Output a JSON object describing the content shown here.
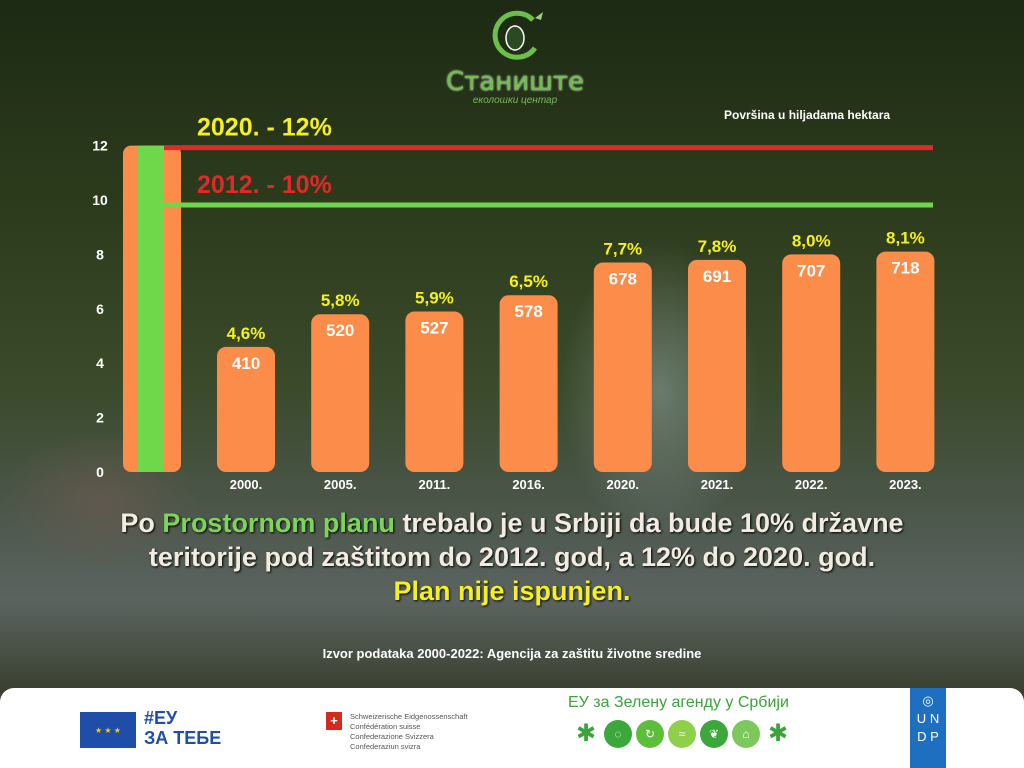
{
  "logo": {
    "name": "Станиште",
    "subtitle": "еколошки центар"
  },
  "unit_note": "Površina u  hiljadama hektara",
  "chart_data": {
    "type": "bar",
    "ylim": [
      0,
      12
    ],
    "yticks": [
      "0",
      "2",
      "4",
      "6",
      "8",
      "10",
      "12"
    ],
    "categories": [
      "2000.",
      "2005.",
      "2011.",
      "2016.",
      "2020.",
      "2021.",
      "2022.",
      "2023."
    ],
    "percent_values": [
      4.6,
      5.8,
      5.9,
      6.5,
      7.7,
      7.8,
      8.0,
      8.1
    ],
    "percent_labels": [
      "4,6%",
      "5,8%",
      "5,9%",
      "6,5%",
      "7,7%",
      "7,8%",
      "8,0%",
      "8,1%"
    ],
    "area_labels": [
      "410",
      "520",
      "527",
      "578",
      "678",
      "691",
      "707",
      "718"
    ],
    "reference_bar": {
      "value": 12
    },
    "targets": [
      {
        "label": "2020. - 12%",
        "value": 12,
        "line_color": "#e02a2a",
        "label_color": "#f5f020"
      },
      {
        "label": "2012. - 10%",
        "value": 10,
        "line_color": "#6fd84a",
        "label_color": "#e02a2a"
      }
    ],
    "bar_color": "#fb8c4a",
    "ref_color": "#6fd84a"
  },
  "message": {
    "p1": "Po ",
    "p2": "Prostornom planu",
    "p3": " trebalo je u  Srbiji  da bude 10% državne",
    "line2": "teritorije pod zaštitom do 2012. god, a 12% do 2020. god.",
    "line3": "Plan nije ispunjen."
  },
  "source": "Izvor podataka  2000-2022: Agencija za zaštitu životne sredine",
  "footer": {
    "eu_tag1": "#ЕУ",
    "eu_tag2": "ЗА ТЕБЕ",
    "swiss": [
      "Schweizerische Eidgenossenschaft",
      "Confédération suisse",
      "Confederazione Svizzera",
      "Confederaziun svizra"
    ],
    "green_agenda": "ЕУ за Зелену агенду у Србији",
    "undp": [
      "U",
      "N",
      "D",
      "P"
    ]
  }
}
